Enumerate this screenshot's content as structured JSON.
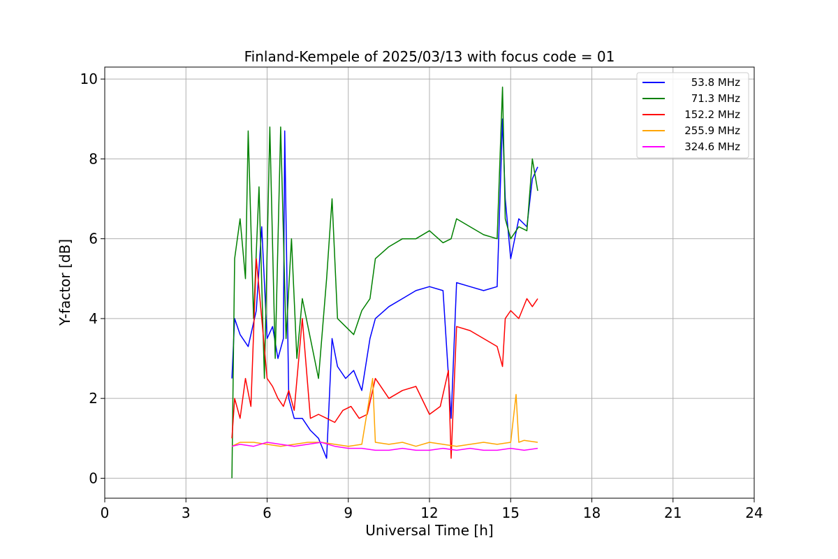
{
  "chart_data": {
    "type": "line",
    "title": "Finland-Kempele of 2025/03/13 with focus code = 01",
    "xlabel": "Universal Time [h]",
    "ylabel": "Y-factor [dB]",
    "xlim": [
      0,
      24
    ],
    "ylim": [
      -0.5,
      10.3
    ],
    "xticks": [
      0,
      3,
      6,
      9,
      12,
      15,
      18,
      21,
      24
    ],
    "xtick_labels": [
      "0",
      "3",
      "6",
      "9",
      "12",
      "15",
      "18",
      "21",
      "24"
    ],
    "yticks": [
      0,
      2,
      4,
      6,
      8,
      10
    ],
    "ytick_labels": [
      "0",
      "2",
      "4",
      "6",
      "8",
      "10"
    ],
    "grid": true,
    "legend_position": "top-right",
    "series": [
      {
        "name": " 53.8 MHz",
        "color": "#0000ff",
        "x": [
          4.7,
          4.8,
          5.0,
          5.3,
          5.6,
          5.8,
          6.0,
          6.2,
          6.4,
          6.6,
          6.65,
          6.8,
          7.0,
          7.3,
          7.6,
          7.9,
          8.2,
          8.4,
          8.6,
          8.9,
          9.2,
          9.5,
          9.8,
          10.0,
          10.5,
          11.0,
          11.5,
          12.0,
          12.5,
          12.8,
          13.0,
          13.5,
          14.0,
          14.5,
          14.7,
          14.8,
          15.0,
          15.3,
          15.6,
          15.8,
          16.0
        ],
        "y": [
          2.5,
          4.0,
          3.6,
          3.3,
          4.2,
          6.3,
          3.5,
          3.8,
          3.0,
          3.5,
          8.7,
          2.0,
          1.5,
          1.5,
          1.2,
          1.0,
          0.5,
          3.5,
          2.8,
          2.5,
          2.7,
          2.2,
          3.5,
          4.0,
          4.3,
          4.5,
          4.7,
          4.8,
          4.7,
          1.5,
          4.9,
          4.8,
          4.7,
          4.8,
          9.0,
          7.0,
          5.5,
          6.5,
          6.3,
          7.5,
          7.8
        ]
      },
      {
        "name": " 71.3 MHz",
        "color": "#008000",
        "x": [
          4.7,
          4.8,
          5.0,
          5.2,
          5.3,
          5.5,
          5.7,
          5.9,
          6.1,
          6.3,
          6.5,
          6.7,
          6.9,
          7.1,
          7.3,
          7.6,
          7.9,
          8.2,
          8.4,
          8.6,
          8.9,
          9.2,
          9.5,
          9.8,
          10.0,
          10.5,
          11.0,
          11.5,
          12.0,
          12.5,
          12.8,
          13.0,
          13.5,
          14.0,
          14.5,
          14.7,
          14.8,
          15.0,
          15.3,
          15.6,
          15.8,
          16.0
        ],
        "y": [
          0.0,
          5.5,
          6.5,
          5.0,
          8.7,
          4.0,
          7.3,
          2.5,
          8.8,
          3.0,
          8.8,
          3.5,
          6.0,
          3.0,
          4.5,
          3.5,
          2.5,
          5.0,
          7.0,
          4.0,
          3.8,
          3.6,
          4.2,
          4.5,
          5.5,
          5.8,
          6.0,
          6.0,
          6.2,
          5.9,
          6.0,
          6.5,
          6.3,
          6.1,
          6.0,
          9.8,
          6.5,
          6.0,
          6.3,
          6.2,
          8.0,
          7.2
        ]
      },
      {
        "name": " 152.2 MHz",
        "color": "#ff0000",
        "x": [
          4.7,
          4.8,
          5.0,
          5.2,
          5.4,
          5.6,
          5.8,
          6.0,
          6.2,
          6.4,
          6.6,
          6.8,
          7.0,
          7.3,
          7.6,
          7.9,
          8.2,
          8.5,
          8.8,
          9.1,
          9.4,
          9.7,
          10.0,
          10.5,
          11.0,
          11.5,
          12.0,
          12.4,
          12.7,
          12.8,
          13.0,
          13.5,
          14.0,
          14.5,
          14.7,
          14.8,
          15.0,
          15.3,
          15.6,
          15.8,
          16.0
        ],
        "y": [
          1.0,
          2.0,
          1.5,
          2.5,
          1.8,
          5.5,
          4.0,
          2.5,
          2.3,
          2.0,
          1.8,
          2.2,
          1.7,
          4.0,
          1.5,
          1.6,
          1.5,
          1.4,
          1.7,
          1.8,
          1.5,
          1.6,
          2.5,
          2.0,
          2.2,
          2.3,
          1.6,
          1.8,
          2.7,
          0.5,
          3.8,
          3.7,
          3.5,
          3.3,
          2.8,
          4.0,
          4.2,
          4.0,
          4.5,
          4.3,
          4.5
        ]
      },
      {
        "name": " 255.9 MHz",
        "color": "#ffa500",
        "x": [
          4.7,
          5.0,
          5.5,
          6.0,
          6.5,
          7.0,
          7.5,
          8.0,
          8.5,
          9.0,
          9.5,
          9.9,
          10.0,
          10.5,
          11.0,
          11.5,
          12.0,
          12.5,
          13.0,
          13.5,
          14.0,
          14.5,
          15.0,
          15.2,
          15.3,
          15.5,
          16.0
        ],
        "y": [
          0.8,
          0.9,
          0.9,
          0.85,
          0.8,
          0.85,
          0.9,
          0.9,
          0.85,
          0.8,
          0.85,
          2.5,
          0.9,
          0.85,
          0.9,
          0.8,
          0.9,
          0.85,
          0.8,
          0.85,
          0.9,
          0.85,
          0.9,
          2.1,
          0.9,
          0.95,
          0.9
        ]
      },
      {
        "name": " 324.6 MHz",
        "color": "#ff00ff",
        "x": [
          4.7,
          5.0,
          5.5,
          6.0,
          6.5,
          7.0,
          7.5,
          8.0,
          8.5,
          9.0,
          9.5,
          10.0,
          10.5,
          11.0,
          11.5,
          12.0,
          12.5,
          13.0,
          13.5,
          14.0,
          14.5,
          15.0,
          15.5,
          16.0
        ],
        "y": [
          0.8,
          0.85,
          0.8,
          0.9,
          0.85,
          0.8,
          0.85,
          0.9,
          0.8,
          0.75,
          0.75,
          0.7,
          0.7,
          0.75,
          0.7,
          0.7,
          0.75,
          0.7,
          0.75,
          0.7,
          0.7,
          0.75,
          0.7,
          0.75
        ]
      }
    ]
  }
}
